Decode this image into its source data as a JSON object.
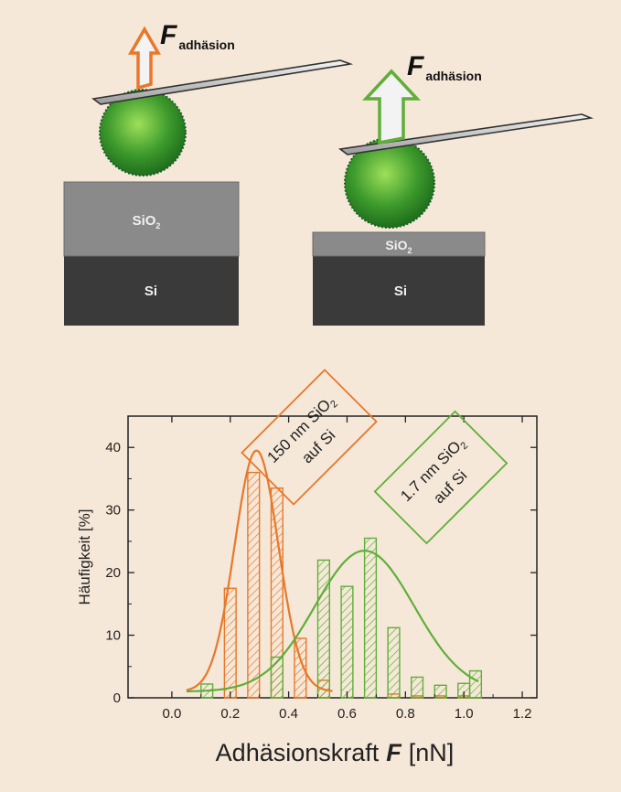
{
  "figure": {
    "force_symbol": "F",
    "force_subscript": "adhäsion",
    "layer_top_label": "SiO",
    "layer_top_sub": "2",
    "layer_bottom_label": "Si",
    "colors": {
      "background": "#f6e8d8",
      "orange": "#e8772a",
      "green": "#5fae3a",
      "sio2": "#8a8a8a",
      "si": "#3a3a3a"
    }
  },
  "chart_data": {
    "type": "bar",
    "xlabel": "Adhäsionskraft",
    "xlabel_symbol": "F",
    "xlabel_unit": "[nN]",
    "ylabel": "Häufigkeit [%]",
    "xlim": [
      -0.15,
      1.25
    ],
    "ylim": [
      0,
      45
    ],
    "xticks": [
      "0.0",
      "0.2",
      "0.4",
      "0.6",
      "0.8",
      "1.0",
      "1.2"
    ],
    "xtick_values": [
      0.0,
      0.2,
      0.4,
      0.6,
      0.8,
      1.0,
      1.2
    ],
    "yticks": [
      "0",
      "10",
      "20",
      "30",
      "40"
    ],
    "ytick_values": [
      0,
      10,
      20,
      30,
      40
    ],
    "bar_width": 0.04,
    "series": [
      {
        "label_line1": "150 nm SiO",
        "label_sub": "2",
        "label_line2": "auf Si",
        "color": "#e8772a",
        "x": [
          0.2,
          0.28,
          0.36,
          0.44,
          0.52,
          0.76,
          0.84,
          0.92,
          1.0
        ],
        "values": [
          17.5,
          36,
          33.5,
          9.5,
          2.8,
          0.6,
          0.3,
          0.3,
          0.3
        ],
        "fit": {
          "center": 0.29,
          "sigma": 0.075,
          "amplitude": 38.5,
          "baseline": 1.0
        }
      },
      {
        "label_line1": "1.7 nm SiO",
        "label_sub": "2",
        "label_line2": "auf Si",
        "color": "#5fae3a",
        "x": [
          0.12,
          0.36,
          0.52,
          0.6,
          0.68,
          0.76,
          0.84,
          0.92,
          1.0,
          1.04
        ],
        "values": [
          2.2,
          6.5,
          22,
          17.8,
          25.5,
          11.2,
          3.3,
          2.0,
          2.3,
          4.3
        ],
        "fit": {
          "center": 0.66,
          "sigma": 0.17,
          "amplitude": 22.5,
          "baseline": 1.0
        }
      }
    ]
  }
}
